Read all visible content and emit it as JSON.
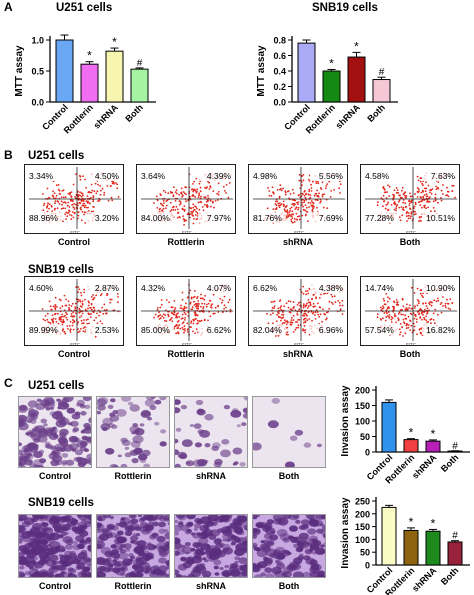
{
  "panels": {
    "A": "A",
    "B": "B",
    "C": "C"
  },
  "chart_data": [
    {
      "type": "bar",
      "title": "U251 cells",
      "ylabel": "MTT assay",
      "ylim": [
        0,
        1.0
      ],
      "yticks": [
        "0.0",
        "0.5",
        "1.0"
      ],
      "categories": [
        "Control",
        "Rottlerin",
        "shRNA",
        "Both"
      ],
      "values": [
        1.0,
        0.61,
        0.82,
        0.53
      ],
      "errors": [
        0.08,
        0.04,
        0.05,
        0.02
      ],
      "marks": [
        "",
        "*",
        "*",
        "#"
      ],
      "colors": [
        "#6aa7f5",
        "#f06cf0",
        "#f6f6b0",
        "#a6f3a3"
      ]
    },
    {
      "type": "bar",
      "title": "SNB19 cells",
      "ylabel": "MTT assay",
      "ylim": [
        0,
        0.8
      ],
      "yticks": [
        "0.0",
        "0.2",
        "0.4",
        "0.6",
        "0.8"
      ],
      "categories": [
        "Control",
        "Rottlerin",
        "shRNA",
        "Both"
      ],
      "values": [
        0.76,
        0.4,
        0.58,
        0.29
      ],
      "errors": [
        0.04,
        0.02,
        0.06,
        0.03
      ],
      "marks": [
        "",
        "*",
        "*",
        "#"
      ],
      "colors": [
        "#aaaaf6",
        "#148a14",
        "#a31010",
        "#f6c8d6"
      ]
    },
    {
      "type": "bar",
      "title": "",
      "ylabel": "Invasion assay",
      "ylim": [
        0,
        200
      ],
      "yticks": [
        "0",
        "50",
        "100",
        "150",
        "200"
      ],
      "categories": [
        "Control",
        "Rottlerin",
        "shRNA",
        "Both"
      ],
      "values": [
        160,
        40,
        35,
        3
      ],
      "errors": [
        8,
        3,
        4,
        1
      ],
      "marks": [
        "",
        "*",
        "*",
        "#"
      ],
      "colors": [
        "#2f93ee",
        "#f24040",
        "#b620b6",
        "#e0e0e0"
      ]
    },
    {
      "type": "bar",
      "title": "",
      "ylabel": "Invasion assay",
      "ylim": [
        0,
        250
      ],
      "yticks": [
        "0",
        "50",
        "100",
        "150",
        "200",
        "250"
      ],
      "categories": [
        "Control",
        "Rottlerin",
        "shRNA",
        "Both"
      ],
      "values": [
        225,
        135,
        132,
        90
      ],
      "errors": [
        8,
        10,
        7,
        5
      ],
      "marks": [
        "",
        "*",
        "*",
        "#"
      ],
      "colors": [
        "#fbfbc6",
        "#8e6410",
        "#1e8a1e",
        "#98223c"
      ]
    }
  ],
  "flow": {
    "u251_title": "U251 cells",
    "snb19_title": "SNB19 cells",
    "axis_text": "FITC",
    "u251": [
      {
        "label": "Control",
        "ul": "3.34%",
        "ur": "4.50%",
        "ll": "88.96%",
        "lr": "3.20%"
      },
      {
        "label": "Rottlerin",
        "ul": "3.64%",
        "ur": "4.39%",
        "ll": "84.00%",
        "lr": "7.97%"
      },
      {
        "label": "shRNA",
        "ul": "4.98%",
        "ur": "5.56%",
        "ll": "81.76%",
        "lr": "7.69%"
      },
      {
        "label": "Both",
        "ul": "4.58%",
        "ur": "7.63%",
        "ll": "77.28%",
        "lr": "10.51%"
      }
    ],
    "snb19": [
      {
        "label": "Control",
        "ul": "4.60%",
        "ur": "2.87%",
        "ll": "89.99%",
        "lr": "2.53%"
      },
      {
        "label": "Rottlerin",
        "ul": "4.32%",
        "ur": "4.07%",
        "ll": "85.00%",
        "lr": "6.62%"
      },
      {
        "label": "shRNA",
        "ul": "6.62%",
        "ur": "4.38%",
        "ll": "82.04%",
        "lr": "6.96%"
      },
      {
        "label": "Both",
        "ul": "14.74%",
        "ur": "10.90%",
        "ll": "57.54%",
        "lr": "16.82%"
      }
    ]
  },
  "invasion": {
    "u251_title": "U251 cells",
    "snb19_title": "SNB19 cells",
    "labels": [
      "Control",
      "Rottlerin",
      "shRNA",
      "Both"
    ],
    "colors": {
      "bg": "#ece4ef",
      "cell": "#6b3f8a",
      "bg_dense": "#c8a8e0",
      "cell_dense": "#5a2d7e"
    }
  }
}
